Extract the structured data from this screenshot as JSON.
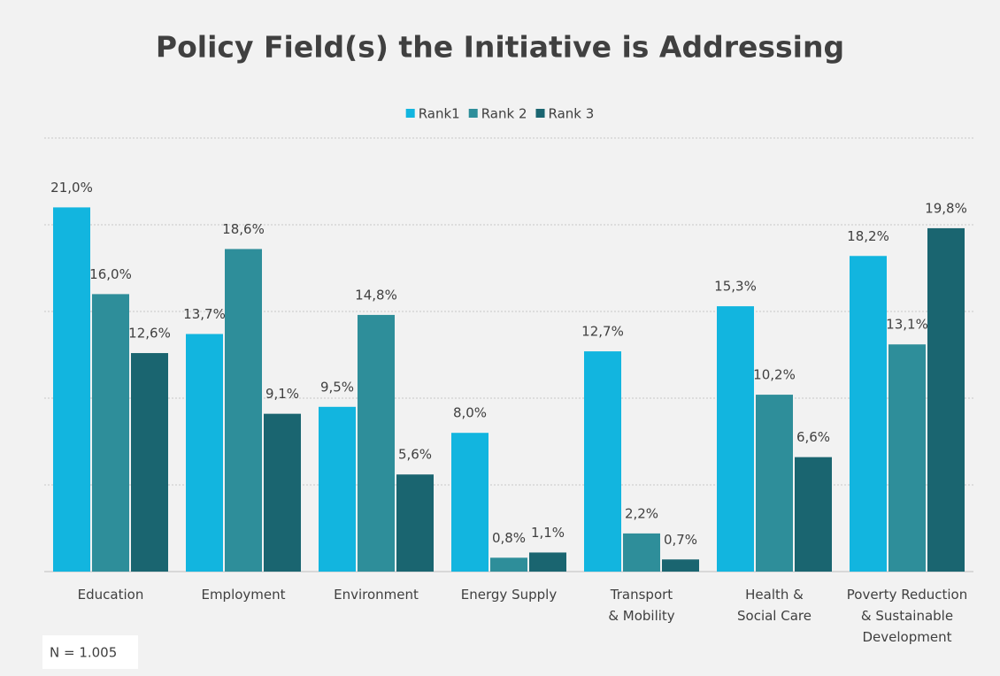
{
  "chart_data": {
    "type": "bar",
    "title": "Policy Field(s) the Initiative is Addressing",
    "categories": [
      "Education",
      "Employment",
      "Environment",
      "Energy Supply",
      "Transport\n& Mobility",
      "Health &\nSocial Care",
      "Poverty Reduction\n& Sustainable\nDevelopment"
    ],
    "series": [
      {
        "name": "Rank1",
        "color": "#12b5df",
        "values": [
          21.0,
          13.7,
          9.5,
          8.0,
          12.7,
          15.3,
          18.2
        ],
        "value_labels": [
          "21,0%",
          "13,7%",
          "9,5%",
          "8,0%",
          "12,7%",
          "15,3%",
          "18,2%"
        ]
      },
      {
        "name": "Rank 2",
        "color": "#2e8e9a",
        "values": [
          16.0,
          18.6,
          14.8,
          0.8,
          2.2,
          10.2,
          13.1
        ],
        "value_labels": [
          "16,0%",
          "18,6%",
          "14,8%",
          "0,8%",
          "2,2%",
          "10,2%",
          "13,1%"
        ]
      },
      {
        "name": "Rank 3",
        "color": "#1a6570",
        "values": [
          12.6,
          9.1,
          5.6,
          1.1,
          0.7,
          6.6,
          19.8
        ],
        "value_labels": [
          "12,6%",
          "9,1%",
          "5,6%",
          "1,1%",
          "0,7%",
          "6,6%",
          "19,8%"
        ]
      }
    ],
    "ylim": [
      0,
      25
    ],
    "yticks": [
      0,
      5,
      10,
      15,
      20,
      25
    ],
    "grid": true,
    "legend": "top",
    "annotation": "N = 1.005"
  }
}
